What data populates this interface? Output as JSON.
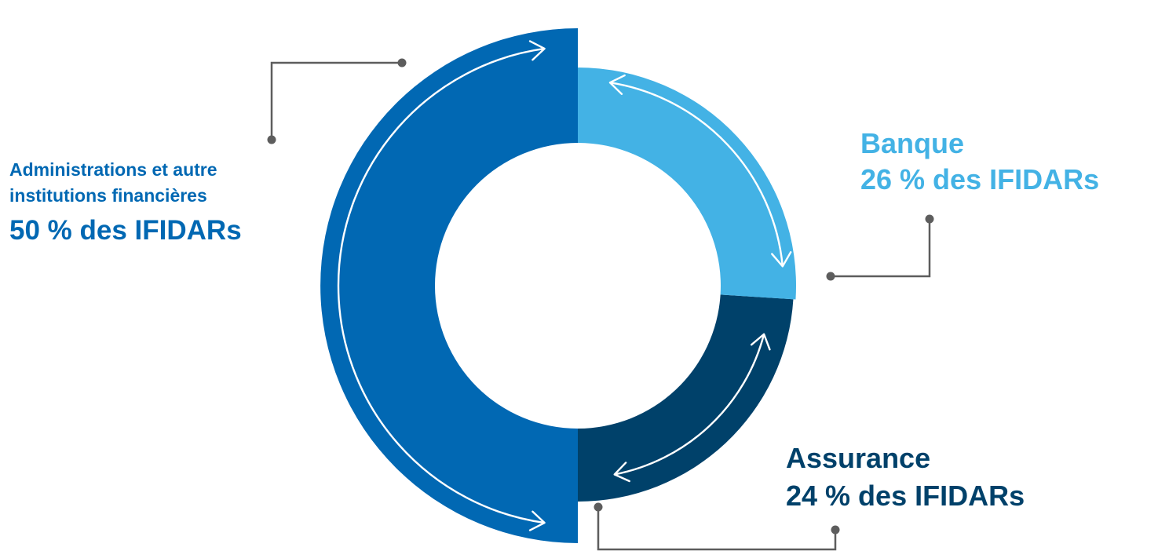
{
  "chart_data": {
    "type": "pie",
    "style": "donut",
    "unit": "%",
    "slices": [
      {
        "key": "admin",
        "lines": [
          "Administrations et autre",
          "institutions financières"
        ],
        "value_text": "50 % des IFIDARs",
        "value": 50,
        "color": "#0168b3"
      },
      {
        "key": "banque",
        "lines": [
          "Banque"
        ],
        "value_text": "26 % des IFIDARs",
        "value": 26,
        "color": "#43b2e5"
      },
      {
        "key": "assurance",
        "lines": [
          "Assurance"
        ],
        "value_text": "24 % des IFIDARs",
        "value": 24,
        "color": "#00416a"
      }
    ],
    "connector_color": "#5d5d5d",
    "arrow_color": "#ffffff"
  }
}
